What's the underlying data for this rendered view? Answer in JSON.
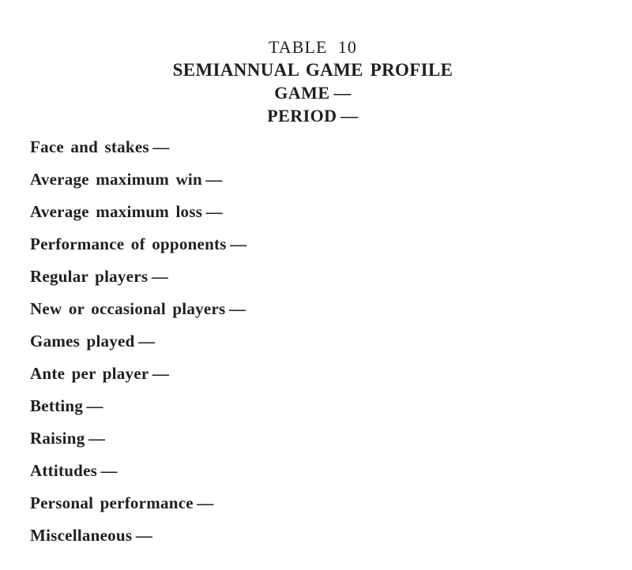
{
  "page": {
    "background_color": "#ffffff",
    "text_color": "#1f1f1f"
  },
  "header": {
    "table_number": "TABLE 10",
    "title": "SEMIANNUAL GAME PROFILE",
    "game_line": "GAME —",
    "period_line": "PERIOD —"
  },
  "fields": [
    "Face and stakes —",
    "Average maximum win —",
    "Average maximum loss —",
    "Performance of opponents —",
    "Regular players —",
    "New or occasional players —",
    "Games played —",
    "Ante per player —",
    "Betting —",
    "Raising —",
    "Attitudes —",
    "Personal performance —",
    "Miscellaneous —"
  ]
}
